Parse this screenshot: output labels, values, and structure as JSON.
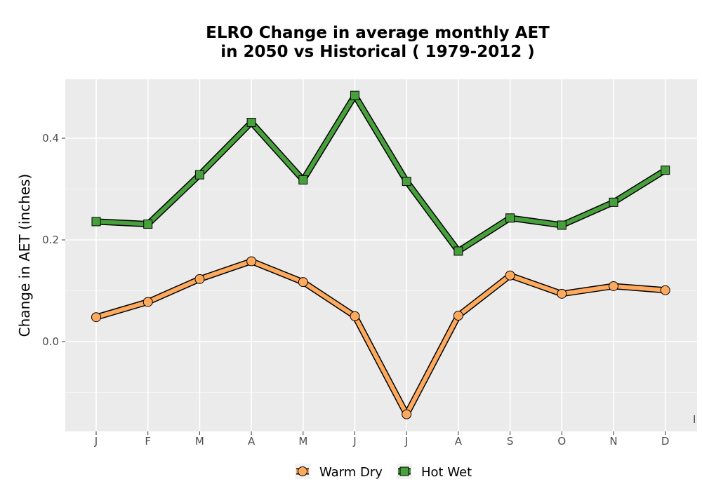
{
  "chart_data": {
    "type": "line",
    "title_line1": "ELRO  Change in average monthly AET",
    "title_line2": "in 2050 vs Historical ( 1979-2012 )",
    "xlabel": "",
    "ylabel": "Change in AET (inches)",
    "categories": [
      "J",
      "F",
      "M",
      "A",
      "M",
      "J",
      "J",
      "A",
      "S",
      "O",
      "N",
      "D"
    ],
    "ylim": [
      -0.175,
      0.51
    ],
    "yticks": [
      0.0,
      0.2,
      0.4
    ],
    "ytick_labels": [
      "0.0",
      "0.2",
      "0.4"
    ],
    "edge_mark": "I",
    "grid": true,
    "legend_position": "bottom",
    "series": [
      {
        "name": "Warm Dry",
        "marker": "circle",
        "color": "#FDAA5F",
        "values": [
          0.048,
          0.078,
          0.123,
          0.158,
          0.117,
          0.05,
          -0.143,
          0.051,
          0.13,
          0.094,
          0.109,
          0.101
        ]
      },
      {
        "name": "Hot Wet",
        "marker": "square",
        "color": "#47A03C",
        "values": [
          0.236,
          0.231,
          0.328,
          0.431,
          0.318,
          0.484,
          0.315,
          0.178,
          0.243,
          0.229,
          0.274,
          0.337
        ]
      }
    ]
  }
}
